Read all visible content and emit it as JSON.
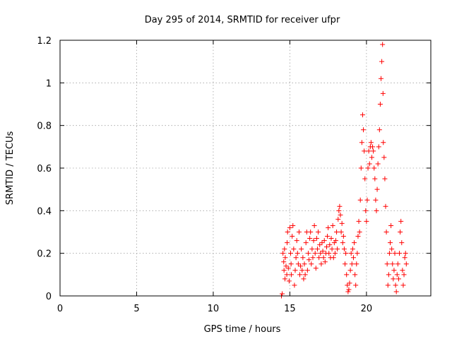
{
  "chart_data": {
    "type": "scatter",
    "title": "Day 295 of 2014, SRMTID for receiver ufpr",
    "xlabel": "GPS time / hours",
    "ylabel": "SRMTID / TECUs",
    "xlim": [
      0,
      24.2
    ],
    "ylim": [
      0,
      1.2
    ],
    "xticks": [
      0,
      5,
      10,
      15,
      20
    ],
    "xtick_labels": [
      "0",
      "5",
      "10",
      "15",
      "20"
    ],
    "yticks": [
      0,
      0.2,
      0.4,
      0.6,
      0.8,
      1.0,
      1.2
    ],
    "ytick_labels": [
      "0",
      "0.2",
      "0.4",
      "0.6",
      "0.8",
      "1",
      "1.2"
    ],
    "grid": true,
    "marker": "+",
    "color": "#ff0000",
    "series": [
      {
        "name": "SRMTID",
        "points": [
          [
            14.45,
            0.0
          ],
          [
            14.5,
            0.01
          ],
          [
            14.55,
            0.2
          ],
          [
            14.6,
            0.16
          ],
          [
            14.62,
            0.12
          ],
          [
            14.65,
            0.22
          ],
          [
            14.68,
            0.08
          ],
          [
            14.7,
            0.18
          ],
          [
            14.75,
            0.14
          ],
          [
            14.8,
            0.1
          ],
          [
            14.82,
            0.25
          ],
          [
            14.85,
            0.3
          ],
          [
            14.9,
            0.13
          ],
          [
            14.95,
            0.07
          ],
          [
            15.0,
            0.32
          ],
          [
            15.05,
            0.2
          ],
          [
            15.08,
            0.15
          ],
          [
            15.1,
            0.1
          ],
          [
            15.15,
            0.28
          ],
          [
            15.2,
            0.33
          ],
          [
            15.25,
            0.22
          ],
          [
            15.3,
            0.05
          ],
          [
            15.35,
            0.12
          ],
          [
            15.4,
            0.18
          ],
          [
            15.45,
            0.26
          ],
          [
            15.5,
            0.2
          ],
          [
            15.55,
            0.15
          ],
          [
            15.6,
            0.3
          ],
          [
            15.65,
            0.1
          ],
          [
            15.7,
            0.14
          ],
          [
            15.75,
            0.22
          ],
          [
            15.8,
            0.12
          ],
          [
            15.85,
            0.18
          ],
          [
            15.9,
            0.08
          ],
          [
            15.95,
            0.15
          ],
          [
            16.0,
            0.1
          ],
          [
            16.05,
            0.25
          ],
          [
            16.1,
            0.3
          ],
          [
            16.15,
            0.12
          ],
          [
            16.2,
            0.2
          ],
          [
            16.25,
            0.17
          ],
          [
            16.3,
            0.27
          ],
          [
            16.35,
            0.3
          ],
          [
            16.4,
            0.15
          ],
          [
            16.45,
            0.22
          ],
          [
            16.5,
            0.18
          ],
          [
            16.55,
            0.26
          ],
          [
            16.6,
            0.33
          ],
          [
            16.65,
            0.2
          ],
          [
            16.7,
            0.13
          ],
          [
            16.75,
            0.27
          ],
          [
            16.8,
            0.22
          ],
          [
            16.85,
            0.3
          ],
          [
            16.9,
            0.18
          ],
          [
            16.95,
            0.24
          ],
          [
            17.0,
            0.2
          ],
          [
            17.05,
            0.15
          ],
          [
            17.1,
            0.25
          ],
          [
            17.15,
            0.21
          ],
          [
            17.2,
            0.18
          ],
          [
            17.25,
            0.26
          ],
          [
            17.3,
            0.16
          ],
          [
            17.35,
            0.2
          ],
          [
            17.4,
            0.23
          ],
          [
            17.45,
            0.28
          ],
          [
            17.5,
            0.32
          ],
          [
            17.55,
            0.2
          ],
          [
            17.6,
            0.24
          ],
          [
            17.65,
            0.18
          ],
          [
            17.7,
            0.27
          ],
          [
            17.75,
            0.22
          ],
          [
            17.8,
            0.33
          ],
          [
            17.85,
            0.18
          ],
          [
            17.9,
            0.25
          ],
          [
            17.95,
            0.2
          ],
          [
            18.0,
            0.26
          ],
          [
            18.05,
            0.3
          ],
          [
            18.1,
            0.22
          ],
          [
            18.15,
            0.36
          ],
          [
            18.2,
            0.4
          ],
          [
            18.25,
            0.42
          ],
          [
            18.3,
            0.38
          ],
          [
            18.35,
            0.3
          ],
          [
            18.4,
            0.34
          ],
          [
            18.45,
            0.25
          ],
          [
            18.5,
            0.28
          ],
          [
            18.55,
            0.22
          ],
          [
            18.6,
            0.15
          ],
          [
            18.65,
            0.2
          ],
          [
            18.7,
            0.1
          ],
          [
            18.75,
            0.05
          ],
          [
            18.8,
            0.02
          ],
          [
            18.85,
            0.03
          ],
          [
            18.9,
            0.06
          ],
          [
            18.95,
            0.12
          ],
          [
            19.0,
            0.2
          ],
          [
            19.05,
            0.15
          ],
          [
            19.1,
            0.22
          ],
          [
            19.15,
            0.18
          ],
          [
            19.2,
            0.25
          ],
          [
            19.25,
            0.1
          ],
          [
            19.3,
            0.05
          ],
          [
            19.35,
            0.15
          ],
          [
            19.4,
            0.2
          ],
          [
            19.45,
            0.28
          ],
          [
            19.5,
            0.35
          ],
          [
            19.55,
            0.3
          ],
          [
            19.6,
            0.45
          ],
          [
            19.65,
            0.6
          ],
          [
            19.7,
            0.72
          ],
          [
            19.75,
            0.85
          ],
          [
            19.8,
            0.78
          ],
          [
            19.85,
            0.68
          ],
          [
            19.9,
            0.55
          ],
          [
            19.95,
            0.4
          ],
          [
            20.0,
            0.35
          ],
          [
            20.05,
            0.45
          ],
          [
            20.1,
            0.6
          ],
          [
            20.15,
            0.68
          ],
          [
            20.2,
            0.62
          ],
          [
            20.25,
            0.7
          ],
          [
            20.3,
            0.72
          ],
          [
            20.35,
            0.65
          ],
          [
            20.4,
            0.7
          ],
          [
            20.45,
            0.68
          ],
          [
            20.5,
            0.6
          ],
          [
            20.55,
            0.55
          ],
          [
            20.6,
            0.45
          ],
          [
            20.65,
            0.4
          ],
          [
            20.7,
            0.5
          ],
          [
            20.75,
            0.62
          ],
          [
            20.8,
            0.7
          ],
          [
            20.85,
            0.78
          ],
          [
            20.9,
            0.9
          ],
          [
            20.95,
            1.02
          ],
          [
            21.0,
            1.1
          ],
          [
            21.05,
            1.18
          ],
          [
            21.08,
            0.95
          ],
          [
            21.1,
            0.72
          ],
          [
            21.15,
            0.65
          ],
          [
            21.2,
            0.55
          ],
          [
            21.25,
            0.42
          ],
          [
            21.3,
            0.3
          ],
          [
            21.35,
            0.15
          ],
          [
            21.4,
            0.05
          ],
          [
            21.45,
            0.1
          ],
          [
            21.5,
            0.2
          ],
          [
            21.55,
            0.25
          ],
          [
            21.6,
            0.33
          ],
          [
            21.65,
            0.22
          ],
          [
            21.7,
            0.15
          ],
          [
            21.75,
            0.08
          ],
          [
            21.8,
            0.12
          ],
          [
            21.85,
            0.2
          ],
          [
            21.9,
            0.05
          ],
          [
            21.95,
            0.02
          ],
          [
            22.0,
            0.1
          ],
          [
            22.05,
            0.15
          ],
          [
            22.1,
            0.08
          ],
          [
            22.15,
            0.2
          ],
          [
            22.2,
            0.3
          ],
          [
            22.25,
            0.35
          ],
          [
            22.3,
            0.25
          ],
          [
            22.35,
            0.12
          ],
          [
            22.4,
            0.05
          ],
          [
            22.45,
            0.1
          ],
          [
            22.5,
            0.18
          ],
          [
            22.55,
            0.2
          ],
          [
            22.6,
            0.15
          ]
        ]
      }
    ]
  }
}
